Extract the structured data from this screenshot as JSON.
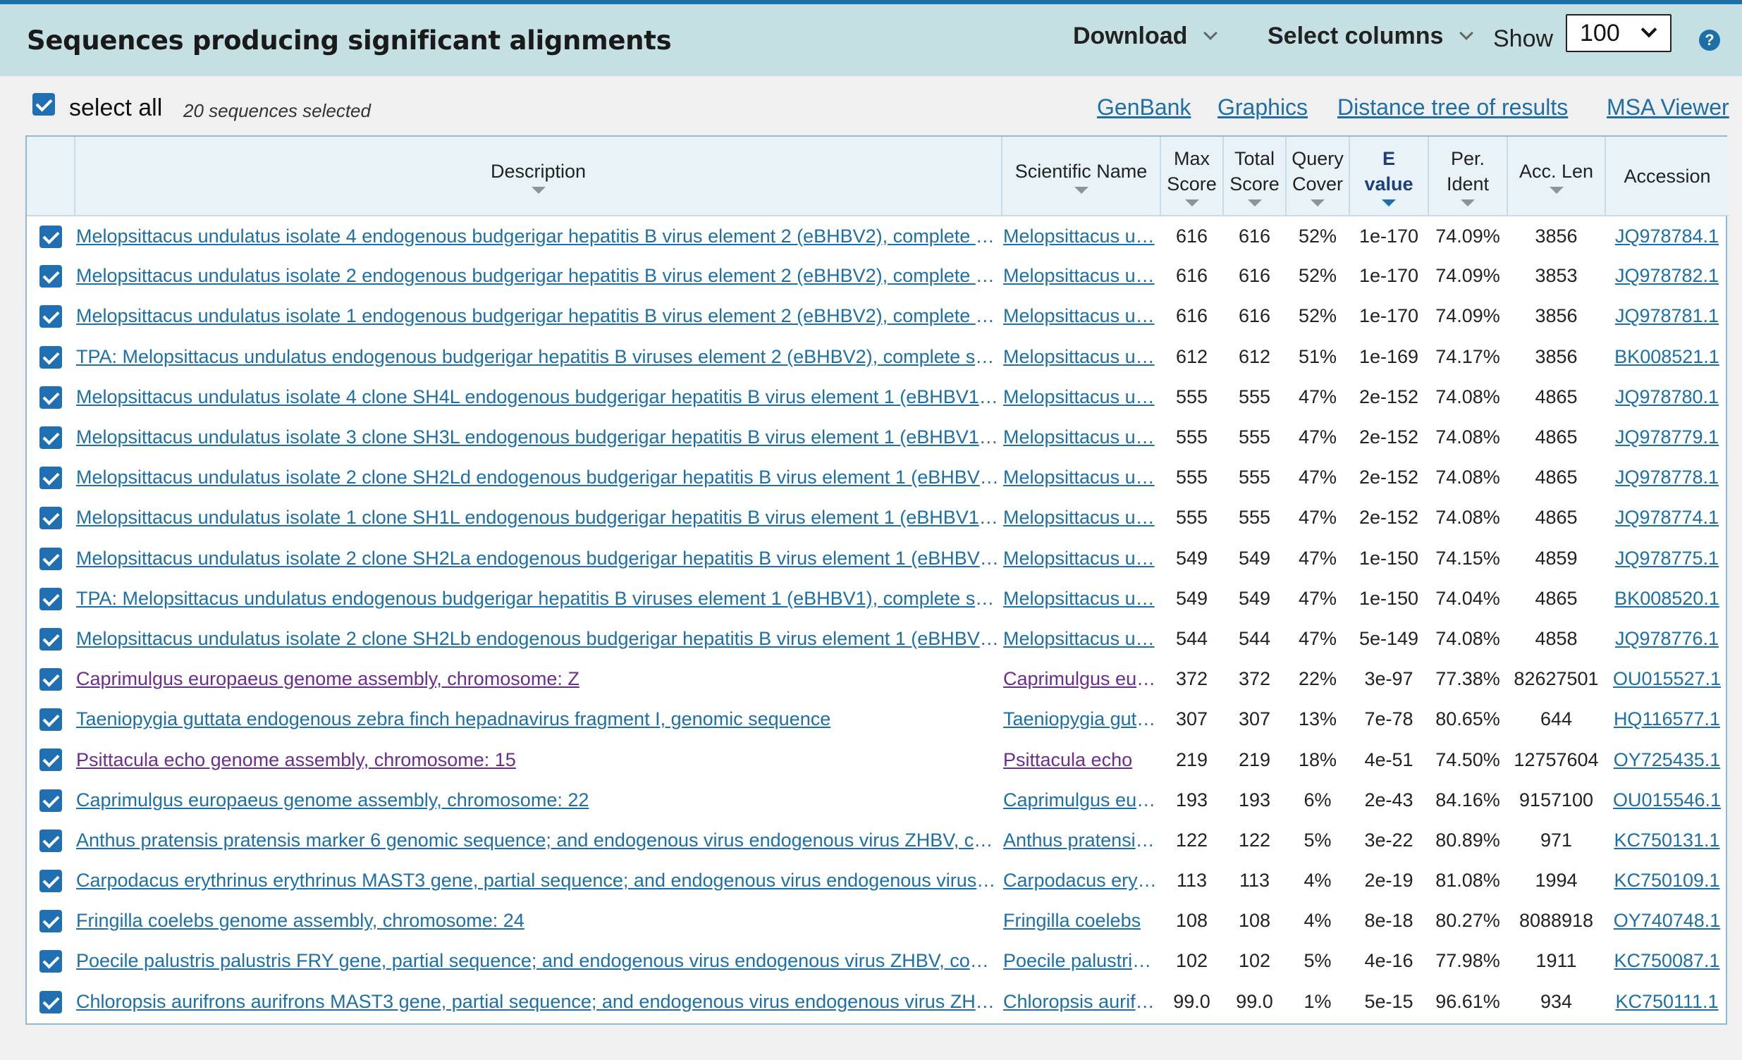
{
  "header": {
    "title": "Sequences producing significant alignments",
    "download_label": "Download",
    "select_columns_label": "Select columns",
    "show_label": "Show",
    "show_value": "100",
    "help_glyph": "?"
  },
  "selection": {
    "select_all_label": "select all",
    "count_text": "20 sequences selected",
    "links": [
      "GenBank",
      "Graphics",
      "Distance tree of results",
      "MSA Viewer"
    ]
  },
  "columns": {
    "description": "Description",
    "scientific_name": "Scientific Name",
    "max_score": [
      "Max",
      "Score"
    ],
    "total_score": [
      "Total",
      "Score"
    ],
    "query_cover": [
      "Query",
      "Cover"
    ],
    "e_value": [
      "E",
      "value"
    ],
    "per_ident": [
      "Per.",
      "Ident"
    ],
    "acc_len": "Acc. Len",
    "accession": "Accession"
  },
  "colors": {
    "link": "#1d6fa8",
    "visited_link": "#6c2d8f",
    "header_bg": "#c5e0e2",
    "checkbox": "#1f6fb2"
  },
  "rows": [
    {
      "desc": "Melopsittacus undulatus isolate 4 endogenous budgerigar hepatitis B virus element 2 (eBHBV2), complete se…",
      "sci": "Melopsittacus u…",
      "max": "616",
      "total": "616",
      "cover": "52%",
      "evalue": "1e-170",
      "ident": "74.09%",
      "len": "3856",
      "acc": "JQ978784.1",
      "visited": false
    },
    {
      "desc": "Melopsittacus undulatus isolate 2 endogenous budgerigar hepatitis B virus element 2 (eBHBV2), complete se…",
      "sci": "Melopsittacus u…",
      "max": "616",
      "total": "616",
      "cover": "52%",
      "evalue": "1e-170",
      "ident": "74.09%",
      "len": "3853",
      "acc": "JQ978782.1",
      "visited": false
    },
    {
      "desc": "Melopsittacus undulatus isolate 1 endogenous budgerigar hepatitis B virus element 2 (eBHBV2), complete se…",
      "sci": "Melopsittacus u…",
      "max": "616",
      "total": "616",
      "cover": "52%",
      "evalue": "1e-170",
      "ident": "74.09%",
      "len": "3856",
      "acc": "JQ978781.1",
      "visited": false
    },
    {
      "desc": "TPA: Melopsittacus undulatus endogenous budgerigar hepatitis B viruses element 2 (eBHBV2), complete seq…",
      "sci": "Melopsittacus u…",
      "max": "612",
      "total": "612",
      "cover": "51%",
      "evalue": "1e-169",
      "ident": "74.17%",
      "len": "3856",
      "acc": "BK008521.1",
      "visited": false
    },
    {
      "desc": "Melopsittacus undulatus isolate 4 clone SH4L endogenous budgerigar hepatitis B virus element 1 (eBHBV1) …",
      "sci": "Melopsittacus u…",
      "max": "555",
      "total": "555",
      "cover": "47%",
      "evalue": "2e-152",
      "ident": "74.08%",
      "len": "4865",
      "acc": "JQ978780.1",
      "visited": false
    },
    {
      "desc": "Melopsittacus undulatus isolate 3 clone SH3L endogenous budgerigar hepatitis B virus element 1 (eBHBV1) …",
      "sci": "Melopsittacus u…",
      "max": "555",
      "total": "555",
      "cover": "47%",
      "evalue": "2e-152",
      "ident": "74.08%",
      "len": "4865",
      "acc": "JQ978779.1",
      "visited": false
    },
    {
      "desc": "Melopsittacus undulatus isolate 2 clone SH2Ld endogenous budgerigar hepatitis B virus element 1 (eBHBV1)…",
      "sci": "Melopsittacus u…",
      "max": "555",
      "total": "555",
      "cover": "47%",
      "evalue": "2e-152",
      "ident": "74.08%",
      "len": "4865",
      "acc": "JQ978778.1",
      "visited": false
    },
    {
      "desc": "Melopsittacus undulatus isolate 1 clone SH1L endogenous budgerigar hepatitis B virus element 1 (eBHBV1) …",
      "sci": "Melopsittacus u…",
      "max": "555",
      "total": "555",
      "cover": "47%",
      "evalue": "2e-152",
      "ident": "74.08%",
      "len": "4865",
      "acc": "JQ978774.1",
      "visited": false
    },
    {
      "desc": "Melopsittacus undulatus isolate 2 clone SH2La endogenous budgerigar hepatitis B virus element 1 (eBHBV1)…",
      "sci": "Melopsittacus u…",
      "max": "549",
      "total": "549",
      "cover": "47%",
      "evalue": "1e-150",
      "ident": "74.15%",
      "len": "4859",
      "acc": "JQ978775.1",
      "visited": false
    },
    {
      "desc": "TPA: Melopsittacus undulatus endogenous budgerigar hepatitis B viruses element 1 (eBHBV1), complete seq…",
      "sci": "Melopsittacus u…",
      "max": "549",
      "total": "549",
      "cover": "47%",
      "evalue": "1e-150",
      "ident": "74.04%",
      "len": "4865",
      "acc": "BK008520.1",
      "visited": false
    },
    {
      "desc": "Melopsittacus undulatus isolate 2 clone SH2Lb endogenous budgerigar hepatitis B virus element 1 (eBHBV1)…",
      "sci": "Melopsittacus u…",
      "max": "544",
      "total": "544",
      "cover": "47%",
      "evalue": "5e-149",
      "ident": "74.08%",
      "len": "4858",
      "acc": "JQ978776.1",
      "visited": false
    },
    {
      "desc": "Caprimulgus europaeus genome assembly, chromosome: Z",
      "sci": "Caprimulgus eur…",
      "max": "372",
      "total": "372",
      "cover": "22%",
      "evalue": "3e-97",
      "ident": "77.38%",
      "len": "82627501",
      "acc": "OU015527.1",
      "visited": true
    },
    {
      "desc": "Taeniopygia guttata endogenous zebra finch hepadnavirus fragment I, genomic sequence",
      "sci": "Taeniopygia gutt…",
      "max": "307",
      "total": "307",
      "cover": "13%",
      "evalue": "7e-78",
      "ident": "80.65%",
      "len": "644",
      "acc": "HQ116577.1",
      "visited": false
    },
    {
      "desc": "Psittacula echo genome assembly, chromosome: 15",
      "sci": "Psittacula echo",
      "max": "219",
      "total": "219",
      "cover": "18%",
      "evalue": "4e-51",
      "ident": "74.50%",
      "len": "12757604",
      "acc": "OY725435.1",
      "visited": true
    },
    {
      "desc": "Caprimulgus europaeus genome assembly, chromosome: 22",
      "sci": "Caprimulgus eur…",
      "max": "193",
      "total": "193",
      "cover": "6%",
      "evalue": "2e-43",
      "ident": "84.16%",
      "len": "9157100",
      "acc": "OU015546.1",
      "visited": false
    },
    {
      "desc": "Anthus pratensis pratensis marker 6 genomic sequence; and endogenous virus endogenous virus ZHBV, co…",
      "sci": "Anthus pratensis…",
      "max": "122",
      "total": "122",
      "cover": "5%",
      "evalue": "3e-22",
      "ident": "80.89%",
      "len": "971",
      "acc": "KC750131.1",
      "visited": false
    },
    {
      "desc": "Carpodacus erythrinus erythrinus MAST3 gene, partial sequence; and endogenous virus endogenous virus Z…",
      "sci": "Carpodacus eryt…",
      "max": "113",
      "total": "113",
      "cover": "4%",
      "evalue": "2e-19",
      "ident": "81.08%",
      "len": "1994",
      "acc": "KC750109.1",
      "visited": false
    },
    {
      "desc": "Fringilla coelebs genome assembly, chromosome: 24",
      "sci": "Fringilla coelebs",
      "max": "108",
      "total": "108",
      "cover": "4%",
      "evalue": "8e-18",
      "ident": "80.27%",
      "len": "8088918",
      "acc": "OY740748.1",
      "visited": false
    },
    {
      "desc": "Poecile palustris palustris FRY gene, partial sequence; and endogenous virus endogenous virus ZHBV, comp…",
      "sci": "Poecile palustris…",
      "max": "102",
      "total": "102",
      "cover": "5%",
      "evalue": "4e-16",
      "ident": "77.98%",
      "len": "1911",
      "acc": "KC750087.1",
      "visited": false
    },
    {
      "desc": "Chloropsis aurifrons aurifrons MAST3 gene, partial sequence; and endogenous virus endogenous virus ZHB…",
      "sci": "Chloropsis aurifr…",
      "max": "99.0",
      "total": "99.0",
      "cover": "1%",
      "evalue": "5e-15",
      "ident": "96.61%",
      "len": "934",
      "acc": "KC750111.1",
      "visited": false
    }
  ]
}
